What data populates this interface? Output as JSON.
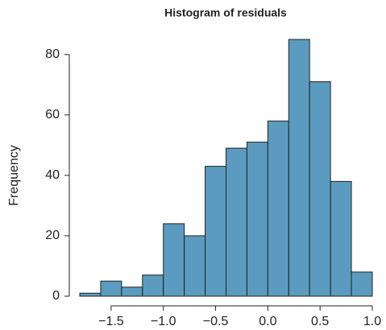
{
  "chart_data": {
    "type": "histogram",
    "title": "Histogram of residuals",
    "y_label": "Frequency",
    "bins": [
      -1.8,
      -1.6,
      -1.4,
      -1.2,
      -1.0,
      -0.8,
      -0.6,
      -0.4,
      -0.2,
      0.0,
      0.2,
      0.4,
      0.6,
      0.8,
      1.0
    ],
    "values": [
      1,
      5,
      3,
      7,
      24,
      20,
      43,
      49,
      51,
      58,
      85,
      71,
      38,
      8
    ],
    "color": "#5b9bbf",
    "xlim": [
      -1.8,
      1.0
    ],
    "xticks": [
      {
        "value": -1.5,
        "label": "−1.5"
      },
      {
        "value": -1.0,
        "label": "−1.0"
      },
      {
        "value": -0.5,
        "label": "−0.5"
      },
      {
        "value": 0,
        "label": "0.0"
      },
      0.5,
      {
        "value": 1,
        "label": "1.0"
      }
    ],
    "ylim": [
      0,
      85
    ],
    "yticks": [
      0,
      20,
      40,
      60,
      80
    ]
  }
}
